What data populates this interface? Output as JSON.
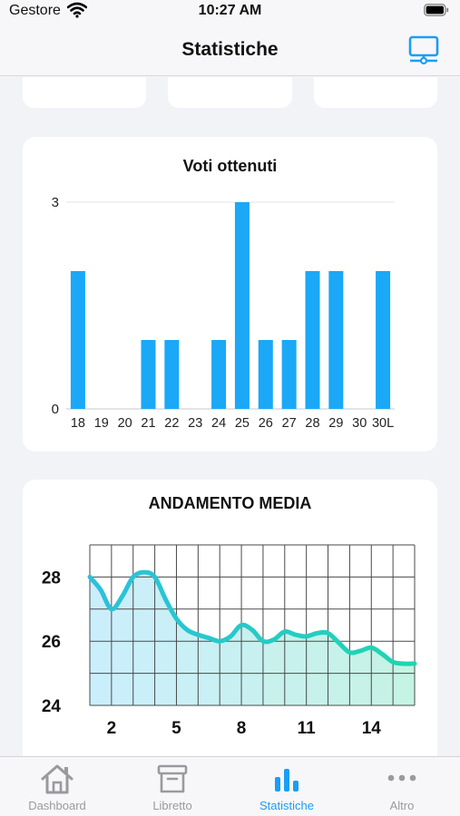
{
  "status_bar": {
    "carrier": "Gestore",
    "time": "10:27 AM"
  },
  "header": {
    "title": "Statistiche"
  },
  "votes_card": {
    "title": "Voti ottenuti",
    "chart_data": {
      "type": "bar",
      "title": "Voti ottenuti",
      "categories": [
        "18",
        "19",
        "20",
        "21",
        "22",
        "23",
        "24",
        "25",
        "26",
        "27",
        "28",
        "29",
        "30",
        "30L"
      ],
      "values": [
        2,
        0,
        0,
        1,
        1,
        0,
        1,
        3,
        1,
        1,
        2,
        2,
        0,
        2
      ],
      "ylim": [
        0,
        3
      ],
      "yticks": [
        "0",
        "3"
      ],
      "color": "#1aa8f7"
    }
  },
  "average_card": {
    "title": "ANDAMENTO MEDIA",
    "chart_data": {
      "type": "area",
      "title": "ANDAMENTO MEDIA",
      "x": [
        1,
        1.5,
        2,
        2.5,
        3,
        3.5,
        4,
        4.5,
        5,
        5.5,
        6,
        6.5,
        7,
        7.5,
        8,
        8.5,
        9,
        9.5,
        10,
        10.5,
        11,
        11.5,
        12,
        12.5,
        13,
        13.5,
        14,
        14.5,
        15,
        15.5,
        16
      ],
      "y": [
        28.0,
        27.6,
        27.0,
        27.4,
        28.0,
        28.15,
        28.0,
        27.3,
        26.7,
        26.35,
        26.2,
        26.1,
        26.0,
        26.15,
        26.5,
        26.35,
        26.0,
        26.05,
        26.3,
        26.2,
        26.15,
        26.25,
        26.25,
        25.95,
        25.65,
        25.7,
        25.8,
        25.6,
        25.35,
        25.3,
        25.3
      ],
      "xlim": [
        1,
        16
      ],
      "ylim": [
        24,
        29
      ],
      "xticks": [
        "2",
        "5",
        "8",
        "11",
        "14"
      ],
      "yticks": [
        "24",
        "26",
        "28"
      ],
      "grid": true,
      "colors": {
        "line_start": "#2cc0dd",
        "line_end": "#1ed6b0",
        "fill_start": "#cbeefd",
        "fill_end": "#c5f3e3",
        "grid": "#4a4a4a"
      }
    }
  },
  "tabs": [
    {
      "label": "Dashboard",
      "icon": "house-icon",
      "active": false
    },
    {
      "label": "Libretto",
      "icon": "archive-box-icon",
      "active": false
    },
    {
      "label": "Statistiche",
      "icon": "bar-chart-icon",
      "active": true
    },
    {
      "label": "Altro",
      "icon": "ellipsis-icon",
      "active": false
    }
  ]
}
